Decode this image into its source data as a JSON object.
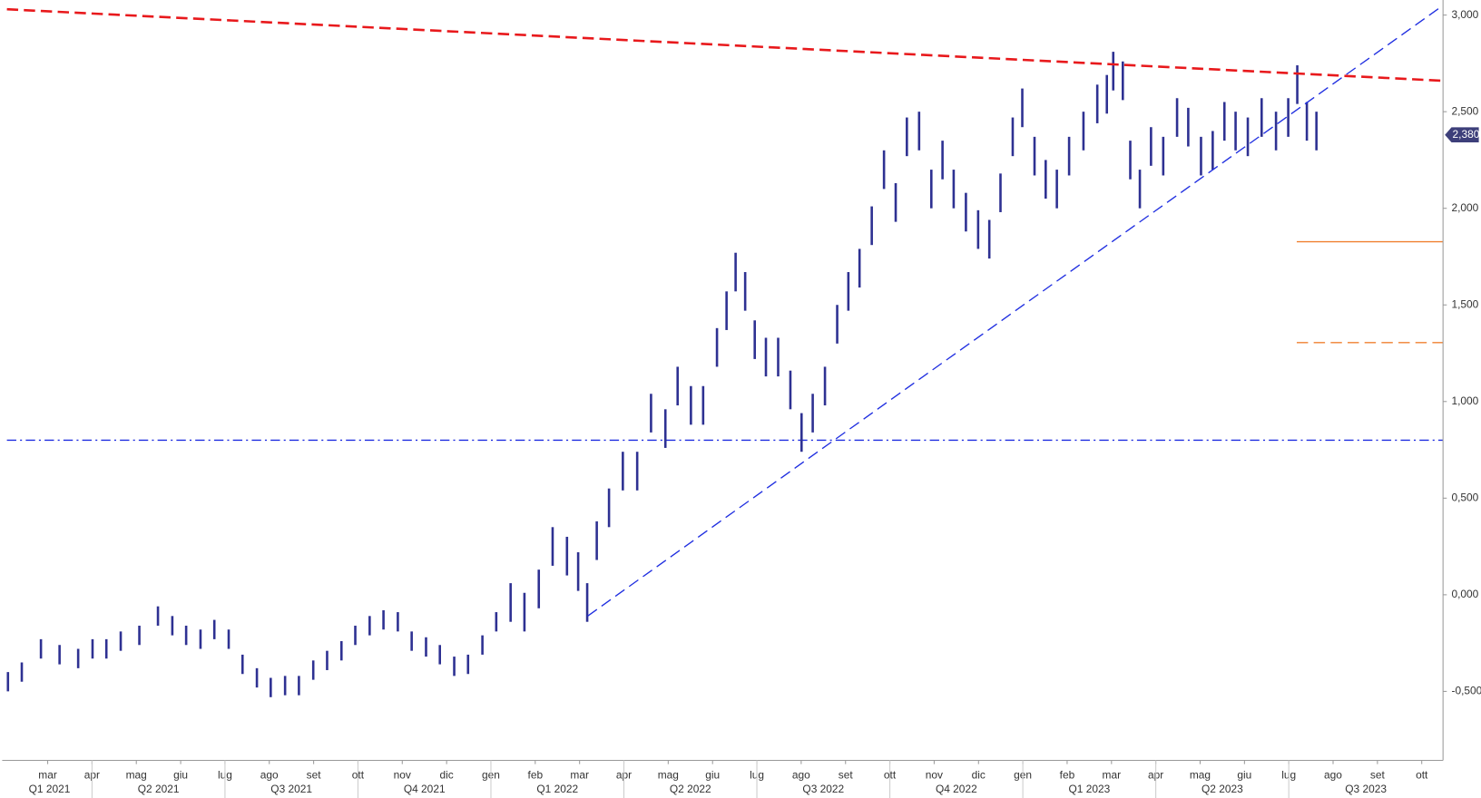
{
  "chart_data": {
    "type": "highlow",
    "xlim": [
      2021.09,
      2023.79
    ],
    "ylim": [
      -0.857,
      3.078
    ],
    "yticks": [
      {
        "value": 3.0,
        "label": "3,000"
      },
      {
        "value": 2.5,
        "label": "2,500"
      },
      {
        "value": 2.0,
        "label": "2,000"
      },
      {
        "value": 1.5,
        "label": "1,500"
      },
      {
        "value": 1.0,
        "label": "1,000"
      },
      {
        "value": 0.5,
        "label": "0,500"
      },
      {
        "value": 0,
        "label": "0,000"
      },
      {
        "value": -0.5,
        "label": "-0,500"
      }
    ],
    "xticks": [
      {
        "value": 2021.1667,
        "label": "mar"
      },
      {
        "value": 2021.25,
        "label": "apr"
      },
      {
        "value": 2021.3333,
        "label": "mag"
      },
      {
        "value": 2021.4167,
        "label": "giu"
      },
      {
        "value": 2021.5,
        "label": "lug"
      },
      {
        "value": 2021.5833,
        "label": "ago"
      },
      {
        "value": 2021.6667,
        "label": "set"
      },
      {
        "value": 2021.75,
        "label": "ott"
      },
      {
        "value": 2021.8333,
        "label": "nov"
      },
      {
        "value": 2021.9167,
        "label": "dic"
      },
      {
        "value": 2022.0,
        "label": "gen"
      },
      {
        "value": 2022.0833,
        "label": "feb"
      },
      {
        "value": 2022.1667,
        "label": "mar"
      },
      {
        "value": 2022.25,
        "label": "apr"
      },
      {
        "value": 2022.3333,
        "label": "mag"
      },
      {
        "value": 2022.4167,
        "label": "giu"
      },
      {
        "value": 2022.5,
        "label": "lug"
      },
      {
        "value": 2022.5833,
        "label": "ago"
      },
      {
        "value": 2022.6667,
        "label": "set"
      },
      {
        "value": 2022.75,
        "label": "ott"
      },
      {
        "value": 2022.8333,
        "label": "nov"
      },
      {
        "value": 2022.9167,
        "label": "dic"
      },
      {
        "value": 2023.0,
        "label": "gen"
      },
      {
        "value": 2023.0833,
        "label": "feb"
      },
      {
        "value": 2023.1667,
        "label": "mar"
      },
      {
        "value": 2023.25,
        "label": "apr"
      },
      {
        "value": 2023.3333,
        "label": "mag"
      },
      {
        "value": 2023.4167,
        "label": "giu"
      },
      {
        "value": 2023.5,
        "label": "lug"
      },
      {
        "value": 2023.5833,
        "label": "ago"
      },
      {
        "value": 2023.6667,
        "label": "set"
      },
      {
        "value": 2023.75,
        "label": "ott"
      }
    ],
    "quarters": [
      {
        "value": 2021.0,
        "label": "Q1 2021"
      },
      {
        "value": 2021.25,
        "label": "Q2 2021"
      },
      {
        "value": 2021.5,
        "label": "Q3 2021"
      },
      {
        "value": 2021.75,
        "label": "Q4 2021"
      },
      {
        "value": 2022.0,
        "label": "Q1 2022"
      },
      {
        "value": 2022.25,
        "label": "Q2 2022"
      },
      {
        "value": 2022.5,
        "label": "Q3 2022"
      },
      {
        "value": 2022.75,
        "label": "Q4 2022"
      },
      {
        "value": 2023.0,
        "label": "Q1 2023"
      },
      {
        "value": 2023.25,
        "label": "Q2 2023"
      },
      {
        "value": 2023.5,
        "label": "Q3 2023"
      }
    ],
    "series": [
      {
        "color": "#2e3192",
        "x": [
          2021.092,
          2021.118,
          2021.154,
          2021.189,
          2021.224,
          2021.251,
          2021.277,
          2021.304,
          2021.339,
          2021.374,
          2021.401,
          2021.427,
          2021.454,
          2021.48,
          2021.507,
          2021.533,
          2021.56,
          2021.586,
          2021.613,
          2021.639,
          2021.666,
          2021.692,
          2021.719,
          2021.745,
          2021.772,
          2021.798,
          2021.825,
          2021.851,
          2021.878,
          2021.904,
          2021.931,
          2021.957,
          2021.984,
          2022.01,
          2022.037,
          2022.063,
          2022.09,
          2022.116,
          2022.143,
          2022.164,
          2022.181,
          2022.199,
          2022.222,
          2022.248,
          2022.275,
          2022.301,
          2022.328,
          2022.351,
          2022.376,
          2022.399,
          2022.425,
          2022.443,
          2022.46,
          2022.478,
          2022.496,
          2022.517,
          2022.54,
          2022.563,
          2022.584,
          2022.605,
          2022.628,
          2022.651,
          2022.672,
          2022.693,
          2022.716,
          2022.739,
          2022.761,
          2022.782,
          2022.805,
          2022.828,
          2022.849,
          2022.87,
          2022.893,
          2022.916,
          2022.937,
          2022.958,
          2022.981,
          2022.999,
          2023.022,
          2023.043,
          2023.064,
          2023.087,
          2023.114,
          2023.14,
          2023.158,
          2023.17,
          2023.188,
          2023.202,
          2023.22,
          2023.241,
          2023.264,
          2023.29,
          2023.311,
          2023.335,
          2023.357,
          2023.379,
          2023.4,
          2023.423,
          2023.449,
          2023.476,
          2023.499,
          2023.516,
          2023.534,
          2023.552
        ],
        "high": [
          -0.4,
          -0.35,
          -0.23,
          -0.26,
          -0.28,
          -0.23,
          -0.23,
          -0.19,
          -0.16,
          -0.06,
          -0.11,
          -0.16,
          -0.18,
          -0.13,
          -0.18,
          -0.31,
          -0.38,
          -0.43,
          -0.42,
          -0.42,
          -0.34,
          -0.29,
          -0.24,
          -0.16,
          -0.11,
          -0.08,
          -0.09,
          -0.19,
          -0.22,
          -0.26,
          -0.32,
          -0.31,
          -0.21,
          -0.09,
          0.06,
          0.01,
          0.13,
          0.35,
          0.3,
          0.22,
          0.06,
          0.38,
          0.55,
          0.74,
          0.74,
          1.04,
          0.96,
          1.18,
          1.08,
          1.08,
          1.38,
          1.57,
          1.77,
          1.67,
          1.42,
          1.33,
          1.33,
          1.16,
          0.94,
          1.04,
          1.18,
          1.5,
          1.67,
          1.79,
          2.01,
          2.3,
          2.13,
          2.47,
          2.5,
          2.2,
          2.35,
          2.2,
          2.08,
          1.99,
          1.94,
          2.18,
          2.47,
          2.62,
          2.37,
          2.25,
          2.2,
          2.37,
          2.5,
          2.64,
          2.69,
          2.81,
          2.76,
          2.35,
          2.2,
          2.42,
          2.37,
          2.57,
          2.52,
          2.37,
          2.4,
          2.55,
          2.5,
          2.47,
          2.57,
          2.5,
          2.57,
          2.74,
          2.55,
          2.5
        ],
        "low": [
          -0.5,
          -0.45,
          -0.33,
          -0.36,
          -0.38,
          -0.33,
          -0.33,
          -0.29,
          -0.26,
          -0.16,
          -0.21,
          -0.26,
          -0.28,
          -0.23,
          -0.28,
          -0.41,
          -0.48,
          -0.53,
          -0.52,
          -0.52,
          -0.44,
          -0.39,
          -0.34,
          -0.26,
          -0.21,
          -0.18,
          -0.19,
          -0.29,
          -0.32,
          -0.36,
          -0.42,
          -0.41,
          -0.31,
          -0.19,
          -0.14,
          -0.19,
          -0.07,
          0.15,
          0.1,
          0.02,
          -0.14,
          0.18,
          0.35,
          0.54,
          0.54,
          0.84,
          0.76,
          0.98,
          0.88,
          0.88,
          1.18,
          1.37,
          1.57,
          1.47,
          1.22,
          1.13,
          1.13,
          0.96,
          0.74,
          0.84,
          0.98,
          1.3,
          1.47,
          1.59,
          1.81,
          2.1,
          1.93,
          2.27,
          2.3,
          2.0,
          2.15,
          2.0,
          1.88,
          1.79,
          1.74,
          1.98,
          2.27,
          2.42,
          2.17,
          2.05,
          2.0,
          2.17,
          2.3,
          2.44,
          2.49,
          2.61,
          2.56,
          2.15,
          2.0,
          2.22,
          2.17,
          2.37,
          2.32,
          2.17,
          2.2,
          2.35,
          2.3,
          2.27,
          2.37,
          2.3,
          2.37,
          2.54,
          2.35,
          2.3
        ]
      }
    ],
    "trendlines": [
      {
        "x": [
          2021.09,
          2023.79
        ],
        "y": [
          3.03,
          2.66
        ],
        "color": "#e8191c",
        "style": "dashed",
        "width": 2.5
      },
      {
        "x": [
          2022.182,
          2023.785
        ],
        "y": [
          -0.11,
          3.04
        ],
        "color": "#1f2ee0",
        "style": "dashed",
        "width": 1.3
      }
    ],
    "hlines": [
      {
        "value": 0.8,
        "color": "#1f2ee0",
        "style": "dashdot",
        "from": 2021.09
      },
      {
        "value": 1.827,
        "color": "#f08030",
        "style": "solid",
        "from": 2023.515
      },
      {
        "value": 1.305,
        "color": "#f08030",
        "style": "dashed",
        "from": 2023.515
      }
    ],
    "last_price": {
      "value": 2.38,
      "label": "2,380",
      "color": "#3d3f7a"
    }
  }
}
